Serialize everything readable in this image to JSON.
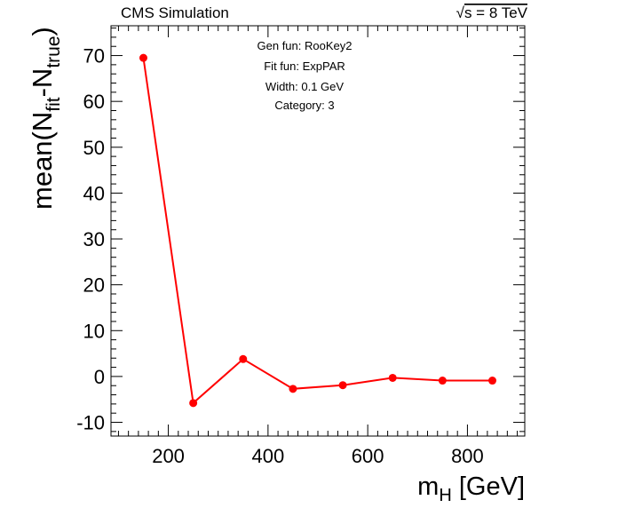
{
  "header": {
    "left": "CMS Simulation",
    "right_root": "√",
    "right_rest": "s = 8 TeV"
  },
  "chart_data": {
    "type": "line",
    "x": [
      150,
      250,
      350,
      450,
      550,
      650,
      750,
      850
    ],
    "series": [
      {
        "values": [
          69.5,
          -5.8,
          3.8,
          -2.7,
          -1.9,
          -0.3,
          -0.9,
          -0.9
        ],
        "color": "#ff0000",
        "marker": "circle"
      }
    ],
    "xlim": [
      85,
      915
    ],
    "ylim": [
      -13,
      76.5
    ],
    "xticks": [
      200,
      400,
      600,
      800
    ],
    "yticks": [
      -10,
      0,
      10,
      20,
      30,
      40,
      50,
      60,
      70
    ],
    "xlabel": {
      "main": "m",
      "sub": "H",
      "rest": " [GeV]"
    },
    "ylabel": {
      "main": "mean(N",
      "sub1": "fit",
      "mid": "-N",
      "sub2": "true",
      "end": ")"
    },
    "annotations": [
      "Gen fun: RooKey2",
      "Fit fun: ExpPAR",
      "Width: 0.1 GeV",
      "Category: 3"
    ],
    "grid": false
  }
}
